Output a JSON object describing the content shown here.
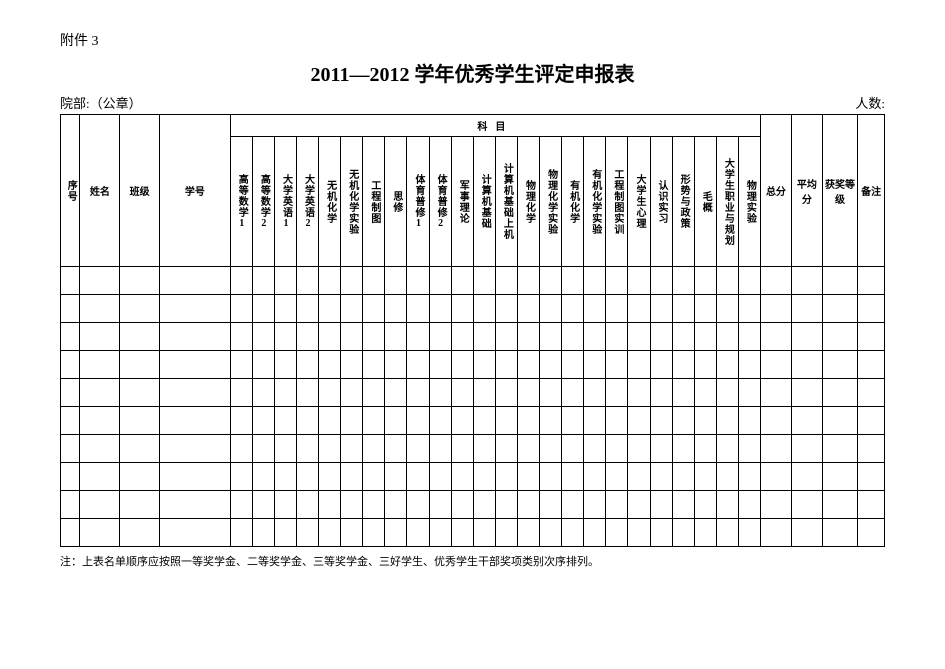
{
  "attachment_label": "附件 3",
  "title": "2011—2012 学年优秀学生评定申报表",
  "dept_label": "院部:（公章）",
  "count_label": "人数:",
  "headers": {
    "seq": "序号",
    "name": "姓名",
    "class": "班级",
    "sid": "学号",
    "subject_group": "科目",
    "total": "总分",
    "avg": "平均分",
    "award": "获奖等级",
    "note": "备注"
  },
  "subjects": [
    "高等数学1",
    "高等数学2",
    "大学英语1",
    "大学英语2",
    "无机化学",
    "无机化学实验",
    "工程制图",
    "思修",
    "体育普修1",
    "体育普修2",
    "军事理论",
    "计算机基础",
    "计算机基础上机",
    "物理化学",
    "物理化学实验",
    "有机化学",
    "有机化学实验",
    "工程制图实训",
    "大学生心理",
    "认识实习",
    "形势与政策",
    "毛概",
    "大学生职业与规划",
    "物理实验"
  ],
  "empty_rows": 10,
  "footnote": "注：上表名单顺序应按照一等奖学金、二等奖学金、三等奖学金、三好学生、优秀学生干部奖项类别次序排列。"
}
